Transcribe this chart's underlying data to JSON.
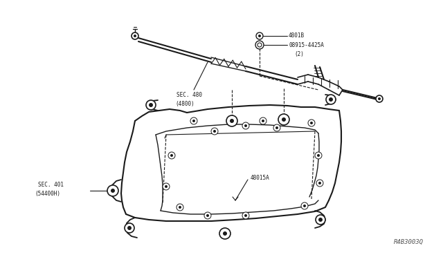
{
  "bg_color": "#ffffff",
  "line_color": "#1a1a1a",
  "text_color": "#1a1a1a",
  "fig_width": 6.4,
  "fig_height": 3.72,
  "dpi": 100,
  "watermark": "R4B3003Q",
  "label_4801B": "4801B",
  "label_08915": "08915-4425A",
  "label_08915_sub": "(2)",
  "label_sec480": "SEC. 480",
  "label_sec480_sub": "(4800)",
  "label_sec401": "SEC. 401",
  "label_sec401_sub": "(54400H)",
  "label_48015A": "48015A",
  "font_size": 5.5
}
